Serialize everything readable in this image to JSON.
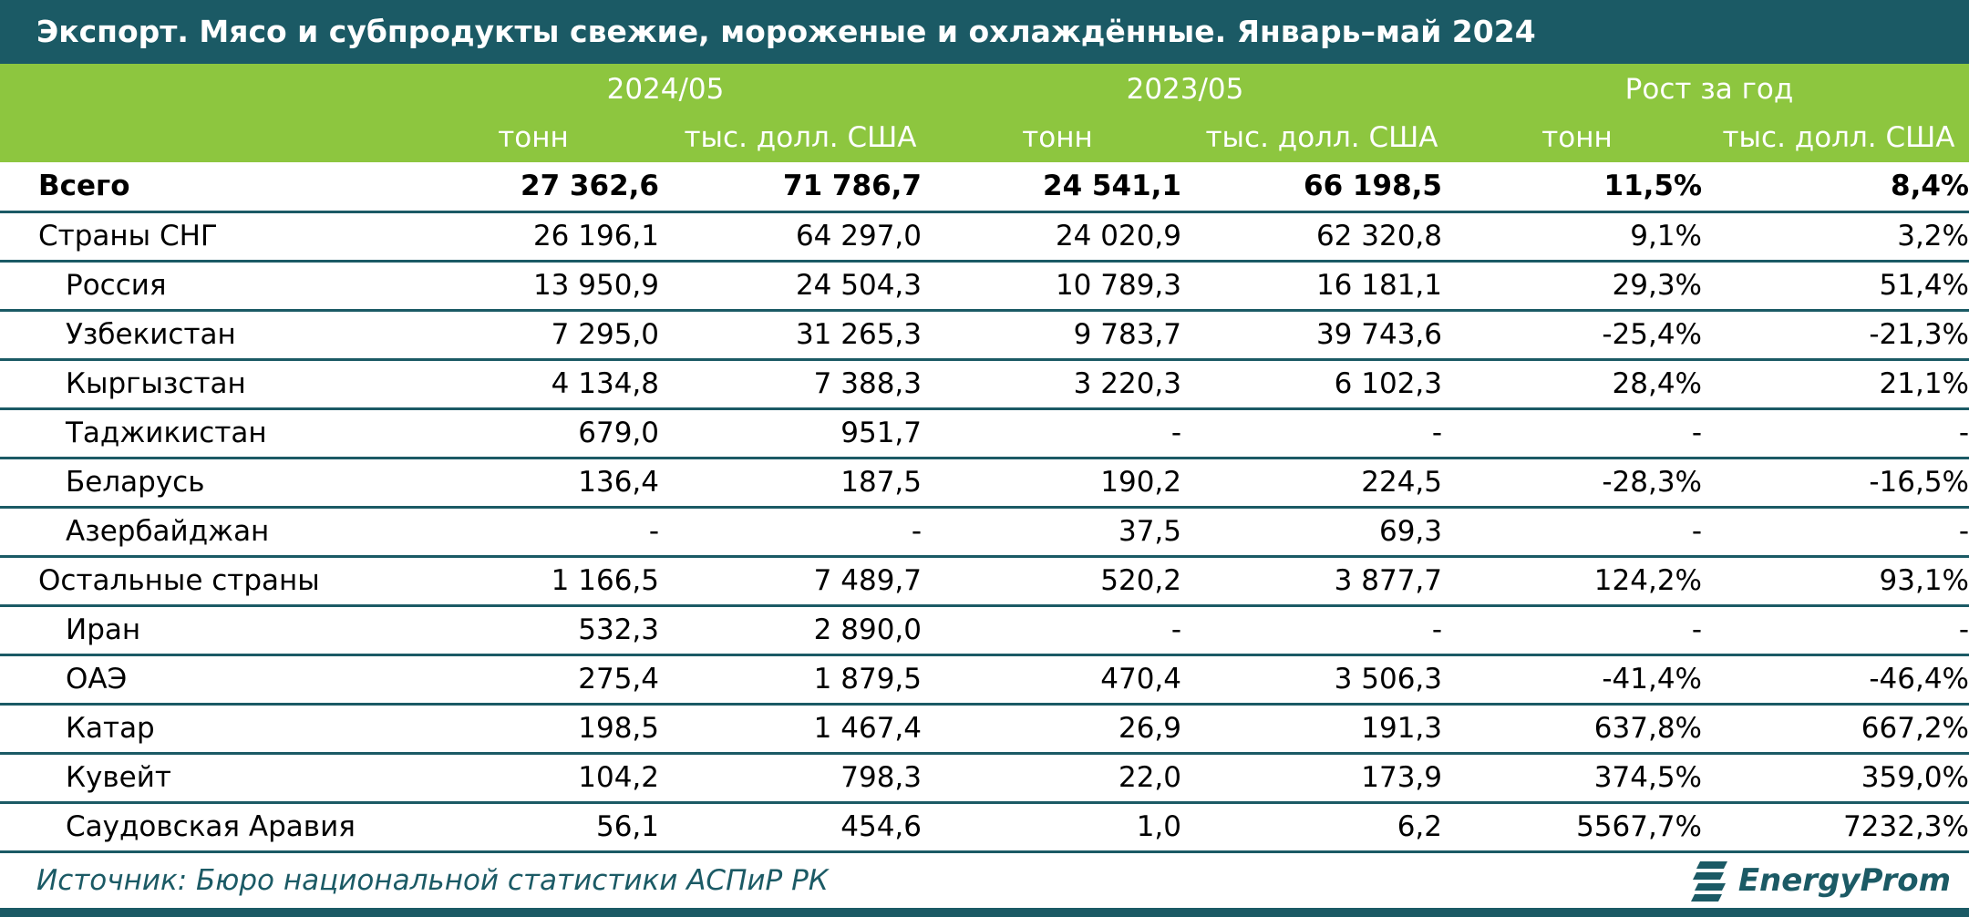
{
  "title": "Экспорт. Мясо и субпродукты свежие, мороженые и охлаждённые. Январь–май 2024",
  "header": {
    "groups": [
      "2024/05",
      "2023/05",
      "Рост за год"
    ],
    "units": [
      "тонн",
      "тыс. долл. США",
      "тонн",
      "тыс. долл. США",
      "тонн",
      "тыс. долл. США"
    ]
  },
  "rows": [
    {
      "name": "Всего",
      "values": [
        "27 362,6",
        "71 786,7",
        "24 541,1",
        "66 198,5",
        "11,5%",
        "8,4%"
      ]
    },
    {
      "name": "Страны СНГ",
      "values": [
        "26 196,1",
        "64 297,0",
        "24 020,9",
        "62 320,8",
        "9,1%",
        "3,2%"
      ]
    },
    {
      "name": "Россия",
      "values": [
        "13 950,9",
        "24 504,3",
        "10 789,3",
        "16 181,1",
        "29,3%",
        "51,4%"
      ]
    },
    {
      "name": "Узбекистан",
      "values": [
        "7 295,0",
        "31 265,3",
        "9 783,7",
        "39 743,6",
        "-25,4%",
        "-21,3%"
      ]
    },
    {
      "name": "Кыргызстан",
      "values": [
        "4 134,8",
        "7 388,3",
        "3 220,3",
        "6 102,3",
        "28,4%",
        "21,1%"
      ]
    },
    {
      "name": "Таджикистан",
      "values": [
        "679,0",
        "951,7",
        "-",
        "-",
        "-",
        "-"
      ]
    },
    {
      "name": "Беларусь",
      "values": [
        "136,4",
        "187,5",
        "190,2",
        "224,5",
        "-28,3%",
        "-16,5%"
      ]
    },
    {
      "name": "Азербайджан",
      "values": [
        "-",
        "-",
        "37,5",
        "69,3",
        "-",
        "-"
      ]
    },
    {
      "name": "Остальные страны",
      "values": [
        "1 166,5",
        "7 489,7",
        "520,2",
        "3 877,7",
        "124,2%",
        "93,1%"
      ]
    },
    {
      "name": "Иран",
      "values": [
        "532,3",
        "2 890,0",
        "-",
        "-",
        "-",
        "-"
      ]
    },
    {
      "name": "ОАЭ",
      "values": [
        "275,4",
        "1 879,5",
        "470,4",
        "3 506,3",
        "-41,4%",
        "-46,4%"
      ]
    },
    {
      "name": "Катар",
      "values": [
        "198,5",
        "1 467,4",
        "26,9",
        "191,3",
        "637,8%",
        "667,2%"
      ]
    },
    {
      "name": "Кувейт",
      "values": [
        "104,2",
        "798,3",
        "22,0",
        "173,9",
        "374,5%",
        "359,0%"
      ]
    },
    {
      "name": "Саудовская Аравия",
      "values": [
        "56,1",
        "454,6",
        "1,0",
        "6,2",
        "5567,7%",
        "7232,3%"
      ]
    }
  ],
  "source": "Источник: Бюро национальной статистики АСПиР РК",
  "logo": {
    "text": "EnergyProm",
    "icon": "energyprom-logo-icon"
  },
  "colors": {
    "primary": "#1b5a65",
    "accent": "#8dc63f"
  }
}
